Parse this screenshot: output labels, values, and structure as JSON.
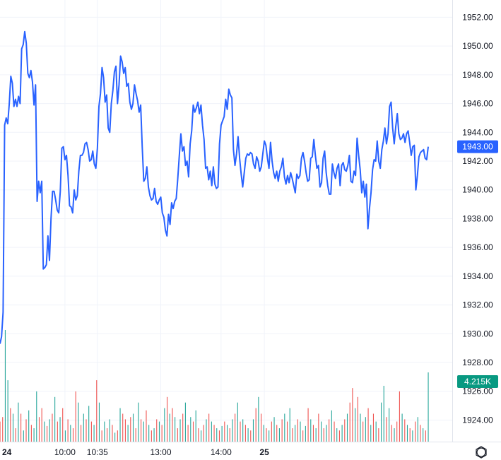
{
  "chart_data": {
    "type": "line",
    "title": "",
    "xlabel": "",
    "ylabel": "",
    "ylim": [
      1922.5,
      1953.2
    ],
    "y_ticks": [
      "1924.00",
      "1926.00",
      "1928.00",
      "1930.00",
      "1932.00",
      "1934.00",
      "1936.00",
      "1938.00",
      "1940.00",
      "1942.00",
      "1944.00",
      "1946.00",
      "1948.00",
      "1950.00",
      "1952.00"
    ],
    "x_ticks": [
      {
        "label": "24",
        "bold": true,
        "idx": 0
      },
      {
        "label": "10:00",
        "bold": false,
        "idx": 42
      },
      {
        "label": "10:35",
        "bold": false,
        "idx": 63
      },
      {
        "label": "13:00",
        "bold": false,
        "idx": 104
      },
      {
        "label": "14:00",
        "bold": false,
        "idx": 143
      },
      {
        "label": "25",
        "bold": true,
        "idx": 171
      }
    ],
    "grid": true,
    "line_color": "#2962ff",
    "price_label": "1943.00",
    "price_value": 1943.0,
    "volume_label": "4.215K",
    "volume_color_up": "#26a69a",
    "volume_color_down": "#ef5350",
    "volume_badge_color": "#089981",
    "series": [
      {
        "values": [
          1929.3,
          1929.8,
          1931.5,
          1944.5,
          1945.0,
          1944.6,
          1946.0,
          1947.9,
          1947.4,
          1945.8,
          1946.3,
          1945.8,
          1946.5,
          1946.0,
          1949.8,
          1950.1,
          1951.0,
          1950.2,
          1948.1,
          1947.8,
          1948.3,
          1947.5,
          1945.9,
          1947.3,
          1939.2,
          1940.6,
          1939.8,
          1940.6,
          1934.5,
          1934.6,
          1934.8,
          1936.8,
          1935.1,
          1938.0,
          1939.9,
          1939.9,
          1939.3,
          1938.6,
          1938.4,
          1939.9,
          1942.9,
          1943.0,
          1942.1,
          1942.4,
          1941.0,
          1938.9,
          1938.8,
          1938.4,
          1940.0,
          1939.3,
          1939.6,
          1941.3,
          1942.4,
          1942.4,
          1942.6,
          1943.2,
          1943.3,
          1942.8,
          1942.0,
          1942.1,
          1942.7,
          1941.8,
          1941.5,
          1942.9,
          1945.8,
          1946.7,
          1948.5,
          1947.8,
          1946.1,
          1946.6,
          1944.3,
          1944.0,
          1946.0,
          1946.9,
          1948.2,
          1948.6,
          1946.0,
          1947.3,
          1949.3,
          1948.9,
          1948.1,
          1948.5,
          1947.2,
          1947.4,
          1946.1,
          1945.6,
          1946.0,
          1947.3,
          1946.7,
          1946.2,
          1945.4,
          1945.9,
          1943.0,
          1940.6,
          1940.8,
          1941.6,
          1940.2,
          1939.6,
          1939.3,
          1939.4,
          1940.1,
          1939.2,
          1939.0,
          1939.3,
          1939.5,
          1938.4,
          1938.1,
          1937.2,
          1936.8,
          1938.3,
          1937.6,
          1939.1,
          1938.7,
          1939.2,
          1939.4,
          1940.8,
          1942.4,
          1943.9,
          1942.7,
          1943.0,
          1941.7,
          1942.0,
          1940.9,
          1943.2,
          1944.1,
          1945.9,
          1945.4,
          1945.7,
          1946.1,
          1945.3,
          1945.9,
          1944.5,
          1943.5,
          1941.5,
          1941.6,
          1940.7,
          1941.3,
          1940.3,
          1941.6,
          1940.4,
          1940.1,
          1940.2,
          1943.2,
          1944.5,
          1944.8,
          1945.1,
          1946.3,
          1945.6,
          1947.0,
          1946.6,
          1946.4,
          1942.8,
          1941.7,
          1942.5,
          1943.7,
          1942.2,
          1941.1,
          1940.2,
          1941.2,
          1942.2,
          1942.5,
          1942.4,
          1942.6,
          1942.5,
          1941.8,
          1941.5,
          1942.3,
          1942.0,
          1941.3,
          1941.6,
          1942.5,
          1943.4,
          1943.1,
          1942.2,
          1941.5,
          1943.3,
          1942.0,
          1941.2,
          1940.8,
          1941.3,
          1940.6,
          1941.3,
          1941.6,
          1942.2,
          1940.9,
          1940.4,
          1941.0,
          1940.5,
          1941.2,
          1940.8,
          1940.3,
          1939.8,
          1941.1,
          1940.8,
          1941.0,
          1942.2,
          1942.6,
          1942.0,
          1941.2,
          1940.6,
          1940.7,
          1942.2,
          1942.3,
          1943.5,
          1942.4,
          1941.5,
          1941.7,
          1940.2,
          1940.5,
          1942.2,
          1942.7,
          1941.2,
          1940.3,
          1939.7,
          1939.7,
          1941.8,
          1941.2,
          1940.8,
          1941.5,
          1941.8,
          1940.3,
          1941.7,
          1941.9,
          1941.4,
          1941.3,
          1941.7,
          1942.4,
          1940.6,
          1940.5,
          1941.3,
          1941.0,
          1943.6,
          1942.4,
          1941.4,
          1939.8,
          1940.6,
          1939.5,
          1940.4,
          1937.3,
          1938.7,
          1939.8,
          1941.4,
          1942.1,
          1942.0,
          1943.4,
          1942.0,
          1941.5,
          1942.8,
          1943.4,
          1944.3,
          1943.2,
          1943.9,
          1945.8,
          1946.1,
          1944.3,
          1943.2,
          1944.4,
          1945.3,
          1943.9,
          1943.5,
          1943.6,
          1943.9,
          1943.3,
          1943.9,
          1944.1,
          1943.3,
          1942.4,
          1943.0,
          1943.1,
          1940.0,
          1941.0,
          1942.3,
          1942.6,
          1942.7,
          1942.8,
          1942.2,
          1942.1,
          1943.0
        ]
      }
    ],
    "volume": [
      {
        "v": 0.18,
        "up": false
      },
      {
        "v": 0.22,
        "up": false
      },
      {
        "v": 1.0,
        "up": true
      },
      {
        "v": 0.55,
        "up": true
      },
      {
        "v": 0.3,
        "up": false
      },
      {
        "v": 0.25,
        "up": true
      },
      {
        "v": 0.12,
        "up": false
      },
      {
        "v": 0.35,
        "up": true
      },
      {
        "v": 0.25,
        "up": false
      },
      {
        "v": 0.1,
        "up": true
      },
      {
        "v": 0.2,
        "up": false
      },
      {
        "v": 0.28,
        "up": true
      },
      {
        "v": 0.15,
        "up": false
      },
      {
        "v": 0.12,
        "up": true
      },
      {
        "v": 0.45,
        "up": true
      },
      {
        "v": 0.22,
        "up": false
      },
      {
        "v": 0.3,
        "up": false
      },
      {
        "v": 0.18,
        "up": true
      },
      {
        "v": 0.14,
        "up": false
      },
      {
        "v": 0.2,
        "up": true
      },
      {
        "v": 0.25,
        "up": false
      },
      {
        "v": 0.4,
        "up": true
      },
      {
        "v": 0.18,
        "up": false
      },
      {
        "v": 0.22,
        "up": true
      },
      {
        "v": 0.3,
        "up": false
      },
      {
        "v": 0.1,
        "up": true
      },
      {
        "v": 0.2,
        "up": false
      },
      {
        "v": 0.15,
        "up": true
      },
      {
        "v": 0.12,
        "up": false
      },
      {
        "v": 0.45,
        "up": false
      },
      {
        "v": 0.35,
        "up": true
      },
      {
        "v": 0.15,
        "up": false
      },
      {
        "v": 0.25,
        "up": true
      },
      {
        "v": 0.2,
        "up": false
      },
      {
        "v": 0.32,
        "up": true
      },
      {
        "v": 0.18,
        "up": false
      },
      {
        "v": 0.15,
        "up": true
      },
      {
        "v": 0.55,
        "up": false
      },
      {
        "v": 0.35,
        "up": true
      },
      {
        "v": 0.1,
        "up": false
      },
      {
        "v": 0.18,
        "up": true
      },
      {
        "v": 0.12,
        "up": false
      },
      {
        "v": 0.2,
        "up": true
      },
      {
        "v": 0.15,
        "up": false
      },
      {
        "v": 0.08,
        "up": true
      },
      {
        "v": 0.1,
        "up": false
      },
      {
        "v": 0.3,
        "up": true
      },
      {
        "v": 0.25,
        "up": false
      },
      {
        "v": 0.2,
        "up": false
      },
      {
        "v": 0.15,
        "up": true
      },
      {
        "v": 0.22,
        "up": false
      },
      {
        "v": 0.25,
        "up": true
      },
      {
        "v": 0.12,
        "up": false
      },
      {
        "v": 0.35,
        "up": true
      },
      {
        "v": 0.2,
        "up": false
      },
      {
        "v": 0.18,
        "up": true
      },
      {
        "v": 0.28,
        "up": false
      },
      {
        "v": 0.15,
        "up": true
      },
      {
        "v": 0.1,
        "up": false
      },
      {
        "v": 0.12,
        "up": true
      },
      {
        "v": 0.2,
        "up": false
      },
      {
        "v": 0.18,
        "up": true
      },
      {
        "v": 0.15,
        "up": false
      },
      {
        "v": 0.3,
        "up": true
      },
      {
        "v": 0.4,
        "up": false
      },
      {
        "v": 0.25,
        "up": true
      },
      {
        "v": 0.3,
        "up": false
      },
      {
        "v": 0.22,
        "up": true
      },
      {
        "v": 0.12,
        "up": false
      },
      {
        "v": 0.2,
        "up": true
      },
      {
        "v": 0.25,
        "up": false
      },
      {
        "v": 0.35,
        "up": true
      },
      {
        "v": 0.15,
        "up": false
      },
      {
        "v": 0.22,
        "up": true
      },
      {
        "v": 0.18,
        "up": false
      },
      {
        "v": 0.28,
        "up": true
      },
      {
        "v": 0.12,
        "up": false
      },
      {
        "v": 0.1,
        "up": true
      },
      {
        "v": 0.15,
        "up": false
      },
      {
        "v": 0.2,
        "up": true
      },
      {
        "v": 0.25,
        "up": false
      },
      {
        "v": 0.18,
        "up": true
      },
      {
        "v": 0.15,
        "up": false
      },
      {
        "v": 0.12,
        "up": true
      },
      {
        "v": 0.1,
        "up": false
      },
      {
        "v": 0.14,
        "up": true
      },
      {
        "v": 0.18,
        "up": false
      },
      {
        "v": 0.15,
        "up": true
      },
      {
        "v": 0.12,
        "up": false
      },
      {
        "v": 0.2,
        "up": true
      },
      {
        "v": 0.25,
        "up": false
      },
      {
        "v": 0.35,
        "up": true
      },
      {
        "v": 0.18,
        "up": false
      },
      {
        "v": 0.2,
        "up": true
      },
      {
        "v": 0.15,
        "up": false
      },
      {
        "v": 0.12,
        "up": true
      },
      {
        "v": 0.1,
        "up": false
      },
      {
        "v": 0.2,
        "up": true
      },
      {
        "v": 0.3,
        "up": false
      },
      {
        "v": 0.4,
        "up": true
      },
      {
        "v": 0.25,
        "up": false
      },
      {
        "v": 0.15,
        "up": true
      },
      {
        "v": 0.12,
        "up": false
      },
      {
        "v": 0.1,
        "up": true
      },
      {
        "v": 0.18,
        "up": false
      },
      {
        "v": 0.22,
        "up": true
      },
      {
        "v": 0.15,
        "up": false
      },
      {
        "v": 0.12,
        "up": true
      },
      {
        "v": 0.2,
        "up": false
      },
      {
        "v": 0.25,
        "up": true
      },
      {
        "v": 0.18,
        "up": false
      },
      {
        "v": 0.3,
        "up": true
      },
      {
        "v": 0.12,
        "up": false
      },
      {
        "v": 0.15,
        "up": true
      },
      {
        "v": 0.2,
        "up": false
      },
      {
        "v": 0.18,
        "up": true
      },
      {
        "v": 0.1,
        "up": false
      },
      {
        "v": 0.14,
        "up": true
      },
      {
        "v": 0.3,
        "up": false
      },
      {
        "v": 0.2,
        "up": true
      },
      {
        "v": 0.15,
        "up": false
      },
      {
        "v": 0.12,
        "up": true
      },
      {
        "v": 0.25,
        "up": false
      },
      {
        "v": 0.18,
        "up": true
      },
      {
        "v": 0.12,
        "up": false
      },
      {
        "v": 0.15,
        "up": true
      },
      {
        "v": 0.2,
        "up": false
      },
      {
        "v": 0.28,
        "up": true
      },
      {
        "v": 0.18,
        "up": false
      },
      {
        "v": 0.12,
        "up": true
      },
      {
        "v": 0.1,
        "up": false
      },
      {
        "v": 0.15,
        "up": true
      },
      {
        "v": 0.2,
        "up": false
      },
      {
        "v": 0.25,
        "up": true
      },
      {
        "v": 0.35,
        "up": false
      },
      {
        "v": 0.48,
        "up": false
      },
      {
        "v": 0.3,
        "up": true
      },
      {
        "v": 0.4,
        "up": false
      },
      {
        "v": 0.25,
        "up": true
      },
      {
        "v": 0.18,
        "up": false
      },
      {
        "v": 0.22,
        "up": true
      },
      {
        "v": 0.3,
        "up": false
      },
      {
        "v": 0.15,
        "up": true
      },
      {
        "v": 0.25,
        "up": false
      },
      {
        "v": 0.18,
        "up": true
      },
      {
        "v": 0.12,
        "up": false
      },
      {
        "v": 0.35,
        "up": true
      },
      {
        "v": 0.5,
        "up": true
      },
      {
        "v": 0.22,
        "up": false
      },
      {
        "v": 0.3,
        "up": true
      },
      {
        "v": 0.15,
        "up": false
      },
      {
        "v": 0.12,
        "up": true
      },
      {
        "v": 0.18,
        "up": false
      },
      {
        "v": 0.45,
        "up": false
      },
      {
        "v": 0.25,
        "up": true
      },
      {
        "v": 0.2,
        "up": false
      },
      {
        "v": 0.15,
        "up": true
      },
      {
        "v": 0.12,
        "up": false
      },
      {
        "v": 0.1,
        "up": true
      },
      {
        "v": 0.18,
        "up": false
      },
      {
        "v": 0.22,
        "up": true
      },
      {
        "v": 0.15,
        "up": false
      },
      {
        "v": 0.12,
        "up": true
      },
      {
        "v": 0.1,
        "up": false
      },
      {
        "v": 0.62,
        "up": true
      }
    ]
  },
  "footer": {
    "settings_icon": "settings-icon"
  }
}
